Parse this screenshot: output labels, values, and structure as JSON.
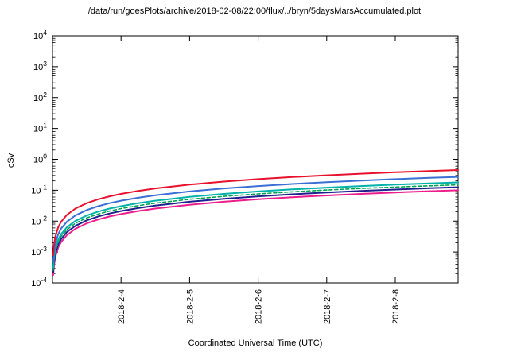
{
  "chart_data": {
    "type": "line",
    "title": "/data/run/goesPlots/archive/2018-02-08/22:00/flux/../bryn/5daysMarsAccumulated.plot",
    "xlabel": "Coordinated Universal Time (UTC)",
    "ylabel": "cSv",
    "y_scale": "log",
    "ylim_exponents": [
      -4,
      4
    ],
    "y_tick_exponents": [
      4,
      3,
      2,
      1,
      0,
      -1,
      -2,
      -3,
      -4
    ],
    "x_range_hours": [
      0,
      142
    ],
    "x_tick_hours": [
      24,
      48,
      72,
      96,
      120
    ],
    "x_tick_labels": [
      "2018-2-4",
      "2018-2-5",
      "2018-2-6",
      "2018-2-7",
      "2018-2-8"
    ],
    "grid": false,
    "legend": "none",
    "axis_color": "#000000",
    "background_color": "#ffffff",
    "x_hours": [
      0.25,
      0.5,
      1,
      2,
      3,
      5,
      8,
      12,
      16,
      20,
      24,
      30,
      36,
      48,
      60,
      72,
      84,
      96,
      108,
      120,
      132,
      142
    ],
    "series": [
      {
        "name": "magenta-curve",
        "color": "#ec1e8c",
        "style": "solid",
        "width": 2,
        "values": [
          0.00018,
          0.00035,
          0.0007,
          0.0014,
          0.0021,
          0.0035,
          0.0056,
          0.0085,
          0.0113,
          0.0141,
          0.0169,
          0.0211,
          0.0254,
          0.0338,
          0.0423,
          0.0507,
          0.0592,
          0.0676,
          0.0761,
          0.0845,
          0.093,
          0.1
        ]
      },
      {
        "name": "navy-curve",
        "color": "#1f1f8f",
        "style": "solid",
        "width": 2,
        "values": [
          0.00022,
          0.00044,
          0.00088,
          0.0018,
          0.0026,
          0.0044,
          0.007,
          0.0106,
          0.0141,
          0.0176,
          0.0211,
          0.0264,
          0.0317,
          0.0423,
          0.0528,
          0.0634,
          0.0739,
          0.0845,
          0.0951,
          0.1056,
          0.1162,
          0.125
        ]
      },
      {
        "name": "green-dashed-curve",
        "color": "#00a550",
        "style": "dashed",
        "width": 1.6,
        "values": [
          0.00026,
          0.00053,
          0.0011,
          0.0021,
          0.0032,
          0.0053,
          0.0085,
          0.0127,
          0.0169,
          0.0211,
          0.0254,
          0.0317,
          0.038,
          0.0507,
          0.0634,
          0.0761,
          0.0887,
          0.1014,
          0.1141,
          0.1268,
          0.1394,
          0.15
        ]
      },
      {
        "name": "cyan-curve",
        "color": "#00b2a9",
        "style": "solid",
        "width": 2,
        "values": [
          0.00032,
          0.00063,
          0.0013,
          0.0025,
          0.0038,
          0.0063,
          0.0101,
          0.0152,
          0.0203,
          0.0254,
          0.0304,
          0.038,
          0.0456,
          0.0609,
          0.0761,
          0.0913,
          0.1065,
          0.1217,
          0.1369,
          0.1521,
          0.1673,
          0.18
        ]
      },
      {
        "name": "blue-curve",
        "color": "#3b6fd4",
        "style": "solid",
        "width": 2,
        "values": [
          0.00048,
          0.00095,
          0.0019,
          0.0038,
          0.0057,
          0.0095,
          0.0152,
          0.0228,
          0.0304,
          0.038,
          0.0456,
          0.057,
          0.0684,
          0.0913,
          0.1141,
          0.1369,
          0.1597,
          0.1825,
          0.2054,
          0.2282,
          0.251,
          0.27
        ]
      },
      {
        "name": "red-curve",
        "color": "#e8112d",
        "style": "solid",
        "width": 2,
        "values": [
          0.00079,
          0.0016,
          0.0032,
          0.0063,
          0.0095,
          0.0158,
          0.0254,
          0.038,
          0.0507,
          0.0634,
          0.0761,
          0.0951,
          0.1141,
          0.1521,
          0.1901,
          0.2282,
          0.2662,
          0.3042,
          0.3423,
          0.3803,
          0.4183,
          0.45
        ]
      }
    ]
  }
}
